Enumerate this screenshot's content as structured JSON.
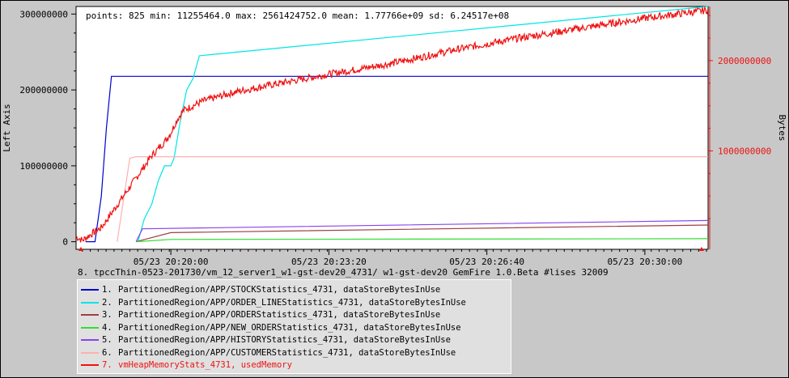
{
  "chart_data": {
    "type": "line",
    "stats_text": "points: 825 min: 11255464.0 max: 2561424752.0 mean: 1.77766e+09 sd: 6.24517e+08",
    "ylabel_left": "Left Axis",
    "ylabel_right": "Bytes",
    "xlabel": "8. tpccThin-0523-201730/vm_12_server1_w1-gst-dev20_4731/ w1-gst-dev20 GemFire 1.0.Beta #lises 32009",
    "left_axis": {
      "ylim": [
        -10000000,
        310000000
      ],
      "ticks": [
        0,
        100000000,
        200000000,
        300000000
      ],
      "tick_labels": [
        "0",
        "100000000",
        "200000000",
        "300000000"
      ]
    },
    "right_axis": {
      "ylim": [
        -90000000,
        2600000000
      ],
      "ticks": [
        1000000000,
        2000000000
      ],
      "tick_labels": [
        "1000000000",
        "2000000000"
      ]
    },
    "xlim": [
      0,
      1000
    ],
    "x_ticks": [
      150,
      400,
      650,
      900
    ],
    "x_tick_labels": [
      "05/23 20:20:00",
      "05/23 20:23:20",
      "05/23 20:26:40",
      "05/23 20:30:00"
    ],
    "series": [
      {
        "name": "PartitionedRegion/APP/STOCKStatistics_4731, dataStoreBytesInUse",
        "num": "1.",
        "color": "#0000cc",
        "axis": "left",
        "x": [
          15,
          30,
          40,
          48,
          56,
          1000
        ],
        "y": [
          0,
          0,
          60000000,
          150000000,
          218000000,
          218000000
        ]
      },
      {
        "name": "PartitionedRegion/APP/ORDER_LINEStatistics_4731, dataStoreBytesInUse",
        "num": "2.",
        "color": "#00e5e5",
        "axis": "left",
        "x": [
          98,
          108,
          120,
          130,
          140,
          150,
          155,
          165,
          175,
          185,
          195,
          1000
        ],
        "y": [
          0,
          30000000,
          50000000,
          80000000,
          100000000,
          100000000,
          110000000,
          160000000,
          200000000,
          215000000,
          245000000,
          310000000
        ]
      },
      {
        "name": "PartitionedRegion/APP/ORDERStatistics_4731, dataStoreBytesInUse",
        "num": "3.",
        "color": "#a04040",
        "axis": "left",
        "x": [
          95,
          150,
          1000
        ],
        "y": [
          0,
          12000000,
          22000000
        ]
      },
      {
        "name": "PartitionedRegion/APP/NEW_ORDERStatistics_4731, dataStoreBytesInUse",
        "num": "4.",
        "color": "#33dd33",
        "axis": "left",
        "x": [
          95,
          150,
          1000
        ],
        "y": [
          0,
          3000000,
          4000000
        ]
      },
      {
        "name": "PartitionedRegion/APP/HISTORYStatistics_4731, dataStoreBytesInUse",
        "num": "5.",
        "color": "#8844ee",
        "axis": "left",
        "x": [
          95,
          105,
          1000
        ],
        "y": [
          0,
          17000000,
          28000000
        ]
      },
      {
        "name": "PartitionedRegion/APP/CUSTOMERStatistics_4731, dataStoreBytesInUse",
        "num": "6.",
        "color": "#ffb0b0",
        "axis": "left",
        "x": [
          65,
          75,
          85,
          95,
          1000
        ],
        "y": [
          0,
          55000000,
          110000000,
          112000000,
          112000000
        ]
      },
      {
        "name": "vmHeapMemoryStats_4731, usedMemory",
        "num": "7.",
        "color": "#ee1111",
        "axis": "right",
        "noisy": true,
        "x": [
          0,
          10,
          20,
          40,
          60,
          80,
          100,
          120,
          140,
          150,
          160,
          170,
          200,
          250,
          300,
          400,
          500,
          600,
          700,
          800,
          900,
          1000
        ],
        "y": [
          50000000,
          10000000,
          60000000,
          150000000,
          350000000,
          550000000,
          750000000,
          950000000,
          1100000000,
          1200000000,
          1350000000,
          1450000000,
          1550000000,
          1650000000,
          1720000000,
          1850000000,
          1970000000,
          2120000000,
          2250000000,
          2360000000,
          2470000000,
          2560000000
        ]
      }
    ]
  }
}
